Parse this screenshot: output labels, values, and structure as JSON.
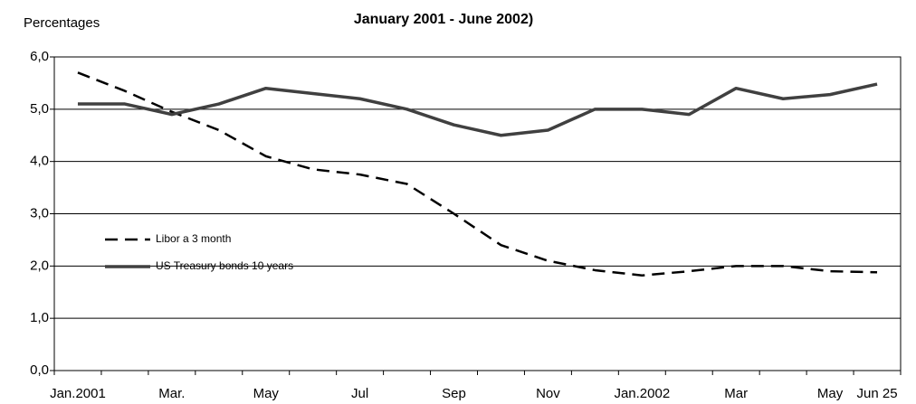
{
  "chart_data": {
    "type": "line",
    "title": "January 2001 - June 2002)",
    "y_label": "Percentages",
    "categories": [
      "Jan.2001",
      null,
      "Mar.",
      null,
      "May",
      null,
      "Jul",
      null,
      "Sep",
      null,
      "Nov",
      null,
      "Jan.2002",
      null,
      "Mar",
      null,
      "May",
      "Jun 25"
    ],
    "series": [
      {
        "name": "Libor a 3 month",
        "color": "#000000",
        "dashed": true,
        "values": [
          5.7,
          5.35,
          4.95,
          4.6,
          4.1,
          3.85,
          3.75,
          3.57,
          3.0,
          2.4,
          2.1,
          1.92,
          1.82,
          1.9,
          2.0,
          2.0,
          1.9,
          1.88
        ]
      },
      {
        "name": "US Treasury bonds 10 years",
        "color": "#404040",
        "dashed": false,
        "values": [
          5.1,
          5.1,
          4.9,
          5.1,
          5.4,
          5.3,
          5.2,
          5.0,
          4.7,
          4.5,
          4.6,
          5.0,
          5.0,
          4.9,
          5.4,
          5.2,
          5.28,
          5.48
        ]
      }
    ],
    "ylim": [
      0,
      6
    ],
    "yticks": [
      {
        "value": 0,
        "label": "0,0"
      },
      {
        "value": 1,
        "label": "1,0"
      },
      {
        "value": 2,
        "label": "2,0"
      },
      {
        "value": 3,
        "label": "3,0"
      },
      {
        "value": 4,
        "label": "4,0"
      },
      {
        "value": 5,
        "label": "5,0"
      },
      {
        "value": 6,
        "label": "6,0"
      }
    ],
    "grid": true
  }
}
